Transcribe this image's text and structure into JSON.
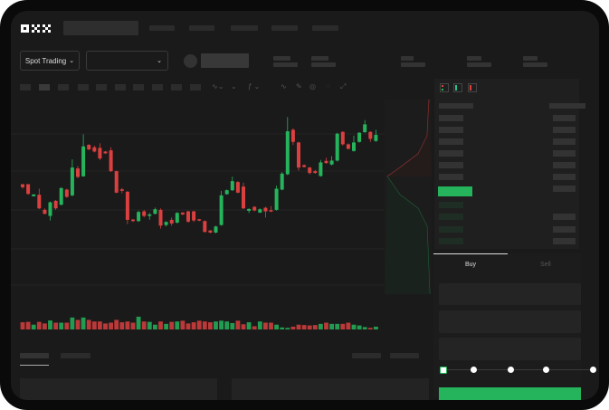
{
  "header": {
    "logo": "OKX"
  },
  "market_bar": {
    "mode_selector": "Spot Trading",
    "pair_selector": ""
  },
  "order_form": {
    "tabs": [
      "Buy",
      "Sell"
    ],
    "active_tab": "Buy",
    "slider_percent": 0,
    "slider_steps": 5
  },
  "colors": {
    "up": "#25b45c",
    "down": "#d9403f",
    "background": "#1a1a1a",
    "accent": "#25b45c"
  },
  "icons": [
    "logo-okx",
    "chevron-down-icon",
    "pencil-icon",
    "orderbook-both-icon",
    "orderbook-bids-icon",
    "orderbook-asks-icon"
  ],
  "chart_data": {
    "type": "candlestick",
    "title": "",
    "xlabel": "",
    "ylabel": "",
    "candles_ohlc": [
      [
        50,
        48,
        50,
        47
      ],
      [
        50,
        43.6,
        50,
        43
      ],
      [
        42,
        43.2,
        43.5,
        42
      ],
      [
        43,
        34,
        47,
        33.5
      ],
      [
        33,
        30.4,
        34,
        30
      ],
      [
        29,
        38,
        38.5,
        26
      ],
      [
        39,
        34,
        39.5,
        33
      ],
      [
        36.4,
        47.4,
        48,
        36
      ],
      [
        46.4,
        41.6,
        47,
        41
      ],
      [
        42.6,
        61,
        66.4,
        42
      ],
      [
        60.4,
        54.8,
        62,
        54
      ],
      [
        55.2,
        75,
        83,
        55
      ],
      [
        76,
        73,
        76.5,
        72.5
      ],
      [
        74.4,
        71.6,
        75.5,
        71
      ],
      [
        74,
        67,
        77,
        66
      ],
      [
        71.6,
        70.4,
        72,
        70
      ],
      [
        72.4,
        58.6,
        74.4,
        58
      ],
      [
        58.6,
        44.4,
        59,
        44
      ],
      [
        46.6,
        45.6,
        47.5,
        44
      ],
      [
        45,
        26.4,
        45.5,
        23.6
      ],
      [
        26.6,
        25.6,
        27,
        25
      ],
      [
        25.6,
        31.6,
        32.5,
        25
      ],
      [
        32,
        29,
        33,
        28
      ],
      [
        29,
        30,
        31,
        26.5
      ],
      [
        30.4,
        33.4,
        34.5,
        30
      ],
      [
        33,
        22.6,
        34,
        20.6
      ],
      [
        23,
        25,
        25.5,
        22
      ],
      [
        26.4,
        24,
        28,
        22.5
      ],
      [
        24.6,
        31,
        31.5,
        24
      ],
      [
        31.2,
        30,
        31.5,
        29.5
      ],
      [
        32,
        25.2,
        32.5,
        24.5
      ],
      [
        32,
        26,
        32.5,
        25
      ],
      [
        26.8,
        26,
        27,
        25.5
      ],
      [
        25.6,
        18.4,
        26,
        18
      ],
      [
        19.4,
        18,
        19.5,
        17.5
      ],
      [
        18,
        22,
        22.5,
        17.5
      ],
      [
        23,
        42.6,
        45.6,
        22.5
      ],
      [
        43.4,
        46,
        46.5,
        43
      ],
      [
        46,
        52,
        55,
        45.5
      ],
      [
        51.4,
        44.4,
        52,
        44
      ],
      [
        48.4,
        34,
        51,
        33.5
      ],
      [
        32.4,
        33.6,
        34,
        31
      ],
      [
        35,
        32.6,
        35.5,
        32
      ],
      [
        31.2,
        33.4,
        34,
        31
      ],
      [
        34.4,
        32,
        35,
        28
      ],
      [
        32.8,
        32,
        35.5,
        31.5
      ],
      [
        33,
        47,
        49,
        32.5
      ],
      [
        46.4,
        57,
        58,
        46
      ],
      [
        56.6,
        85,
        94.4,
        56
      ],
      [
        86,
        78,
        87,
        76
      ],
      [
        77.6,
        61,
        78,
        59
      ],
      [
        62.6,
        61.4,
        63,
        61
      ],
      [
        61,
        57.4,
        61.5,
        56.5
      ],
      [
        58.6,
        57.4,
        59.5,
        57
      ],
      [
        55.4,
        64.4,
        66,
        55
      ],
      [
        65.4,
        64,
        67.5,
        63.5
      ],
      [
        63,
        65.6,
        68.5,
        62.5
      ],
      [
        65.6,
        83.4,
        84,
        65
      ],
      [
        84.6,
        76.4,
        85,
        75.5
      ],
      [
        76.4,
        73.4,
        77,
        73
      ],
      [
        72,
        77.6,
        82,
        71.5
      ],
      [
        78,
        84,
        84.5,
        77.5
      ],
      [
        84.4,
        89.6,
        92.4,
        84
      ],
      [
        84.6,
        80,
        85,
        78
      ],
      [
        78.6,
        82.6,
        86,
        78
      ]
    ],
    "volumes": [
      36,
      38,
      24,
      38,
      30,
      45,
      34,
      34,
      34,
      60,
      48,
      60,
      48,
      40,
      40,
      30,
      34,
      48,
      36,
      40,
      34,
      64,
      40,
      38,
      24,
      40,
      28,
      38,
      40,
      44,
      30,
      36,
      44,
      40,
      36,
      40,
      44,
      40,
      32,
      44,
      26,
      36,
      16,
      40,
      34,
      34,
      24,
      10,
      8,
      14,
      24,
      22,
      20,
      22,
      28,
      34,
      28,
      28,
      28,
      34,
      24,
      20,
      12,
      8,
      14
    ]
  }
}
